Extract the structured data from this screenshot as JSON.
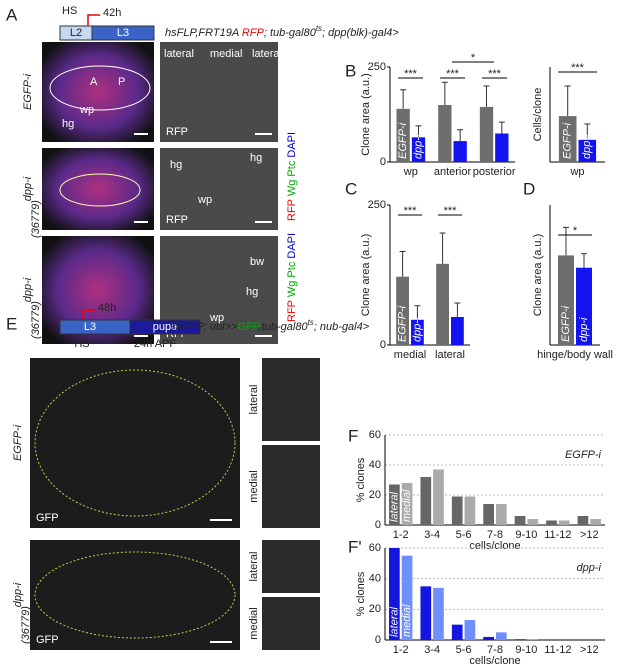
{
  "figure": {
    "panel_labels": [
      "A",
      "B",
      "C",
      "D",
      "E",
      "F",
      "F'"
    ],
    "panel_a": {
      "hs": "HS",
      "time": "42h",
      "stages": [
        "L2",
        "L3"
      ],
      "genotype": [
        "hsFLP,FRT19A ",
        "RFP",
        "; tub-gal80",
        "ts",
        "; dpp(blk)-gal4>"
      ],
      "rows": [
        {
          "label": "EGFP-i",
          "left": [
            "A",
            "P",
            "wp",
            "hg"
          ],
          "right": [
            "lateral",
            "medial",
            "lateral",
            "RFP"
          ]
        },
        {
          "label": "dpp-i",
          "sublabel": "(36779)",
          "right": [
            "hg",
            "hg",
            "wp",
            "RFP"
          ],
          "stain": [
            "RFP",
            "Wg",
            "Ptc",
            "DAPI"
          ]
        },
        {
          "label": "dpp-i",
          "sublabel": "(36779)",
          "right": [
            "bw",
            "hg",
            "wp",
            "RFP"
          ],
          "stain": [
            "RFP",
            "Wg",
            "Ptc",
            "DAPI"
          ]
        }
      ]
    },
    "panel_e": {
      "hs": "HS",
      "time": "48h",
      "stages": [
        "L3",
        "pupa"
      ],
      "apf": "24h APF",
      "genotype": [
        "hsFLP; ubi>>",
        "GFP",
        ",tub-gal80",
        "ts",
        "; nub-gal4>"
      ],
      "rows": [
        {
          "label": "EGFP-i",
          "stain": "GFP",
          "insets": [
            "lateral",
            "medial"
          ]
        },
        {
          "label": "dpp-i",
          "sublabel": "(36779)",
          "stain": "GFP",
          "insets": [
            "lateral",
            "medial"
          ]
        }
      ]
    }
  },
  "chart_data": [
    {
      "type": "bar",
      "ylabel": "Clone area (a.u.)",
      "categories": [
        "wp",
        "anterior",
        "posterior"
      ],
      "series": [
        {
          "name": "EGFP-i",
          "color": "#6e6e6e",
          "values": [
            140,
            150,
            145
          ],
          "errors": [
            50,
            60,
            55
          ]
        },
        {
          "name": "dpp-i",
          "color": "#1414f0",
          "values": [
            65,
            55,
            75
          ],
          "errors": [
            30,
            30,
            30
          ]
        }
      ],
      "ylim": [
        0,
        250
      ],
      "yticks": [
        0,
        250
      ],
      "annotations": [
        "***",
        "***",
        "*",
        "***"
      ]
    },
    {
      "type": "bar",
      "ylabel": "Cells/clone",
      "categories": [
        "wp"
      ],
      "series": [
        {
          "name": "EGFP-i",
          "color": "#6e6e6e",
          "values": [
            29
          ],
          "errors": [
            19
          ]
        },
        {
          "name": "dpp-i",
          "color": "#1414f0",
          "values": [
            14
          ],
          "errors": [
            10
          ]
        }
      ],
      "ylim": [
        0,
        60
      ],
      "annotations": [
        "***"
      ]
    },
    {
      "type": "bar",
      "ylabel": "Clone area (a.u.)",
      "categories": [
        "medial",
        "lateral"
      ],
      "series": [
        {
          "name": "EGFP-i",
          "color": "#6e6e6e",
          "values": [
            122,
            145
          ],
          "errors": [
            45,
            55
          ]
        },
        {
          "name": "dpp-i",
          "color": "#1414f0",
          "values": [
            45,
            50
          ],
          "errors": [
            25,
            25
          ]
        }
      ],
      "ylim": [
        0,
        250
      ],
      "yticks": [
        0,
        250
      ],
      "annotations": [
        "***",
        "***"
      ]
    },
    {
      "type": "bar",
      "ylabel": "Clone area (a.u.)",
      "categories": [
        "hinge/body wall"
      ],
      "series": [
        {
          "name": "EGFP-i",
          "color": "#6e6e6e",
          "values": [
            160
          ],
          "errors": [
            50
          ]
        },
        {
          "name": "dpp-i",
          "color": "#1414f0",
          "values": [
            138
          ],
          "errors": [
            25
          ]
        }
      ],
      "ylim": [
        0,
        250
      ],
      "annotations": [
        "*"
      ]
    },
    {
      "type": "bar",
      "subtitle": "EGFP-i",
      "xlabel": "cells/clone",
      "ylabel": "% clones",
      "categories": [
        "1-2",
        "3-4",
        "5-6",
        "7-8",
        "9-10",
        "11-12",
        ">12"
      ],
      "series": [
        {
          "name": "lateral",
          "color": "#666666",
          "values": [
            27,
            32,
            19,
            14,
            6,
            3,
            6
          ]
        },
        {
          "name": "medial",
          "color": "#aaaaaa",
          "values": [
            28,
            37,
            19,
            14,
            4,
            3,
            4
          ]
        }
      ],
      "ylim": [
        0,
        60
      ],
      "yticks": [
        0,
        20,
        40,
        60
      ],
      "grid": true
    },
    {
      "type": "bar",
      "subtitle": "dpp-i",
      "xlabel": "cells/clone",
      "ylabel": "% clones",
      "categories": [
        "1-2",
        "3-4",
        "5-6",
        "7-8",
        "9-10",
        "11-12",
        ">12"
      ],
      "series": [
        {
          "name": "lateral",
          "color": "#1515e0",
          "values": [
            60,
            35,
            10,
            2,
            0.5,
            0,
            0
          ]
        },
        {
          "name": "medial",
          "color": "#6f8fff",
          "values": [
            55,
            34,
            13,
            5,
            0.5,
            0,
            0
          ]
        }
      ],
      "ylim": [
        0,
        60
      ],
      "yticks": [
        0,
        20,
        40,
        60
      ],
      "grid": true
    }
  ]
}
